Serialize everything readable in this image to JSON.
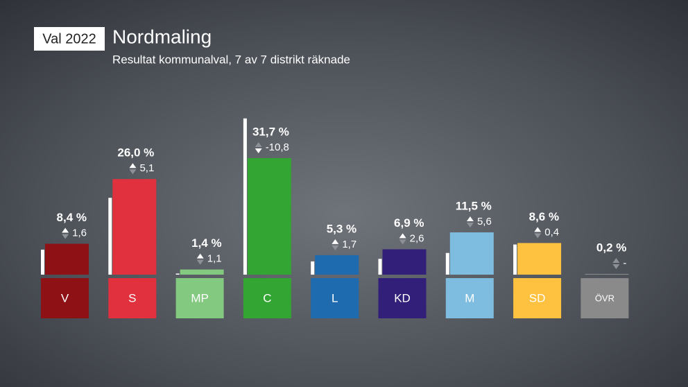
{
  "chart_data": {
    "type": "bar",
    "badge": "Val 2022",
    "title": "Nordmaling",
    "subtitle": "Resultat kommunalval, 7 av 7 distrikt räknade",
    "categories": [
      "V",
      "S",
      "MP",
      "C",
      "L",
      "KD",
      "M",
      "SD",
      "ÖVR"
    ],
    "values": [
      8.4,
      26.0,
      1.4,
      31.7,
      5.3,
      6.9,
      11.5,
      8.6,
      0.2
    ],
    "value_labels": [
      "8,4 %",
      "26,0 %",
      "1,4 %",
      "31,7 %",
      "5,3 %",
      "6,9 %",
      "11,5 %",
      "8,6 %",
      "0,2 %"
    ],
    "previous_values": [
      6.8,
      20.9,
      0.3,
      42.5,
      3.6,
      4.3,
      5.9,
      8.2,
      null
    ],
    "changes": [
      1.6,
      5.1,
      1.1,
      -10.8,
      1.7,
      2.6,
      5.6,
      0.4,
      null
    ],
    "change_labels": [
      "1,6",
      "5,1",
      "1,1",
      "-10,8",
      "1,7",
      "2,6",
      "5,6",
      "0,4",
      "-"
    ],
    "colors": [
      "#8e1116",
      "#e1313f",
      "#83c97f",
      "#33a532",
      "#1f6bb0",
      "#311f7a",
      "#7fbde0",
      "#fec240",
      "#8a8a8a"
    ]
  }
}
